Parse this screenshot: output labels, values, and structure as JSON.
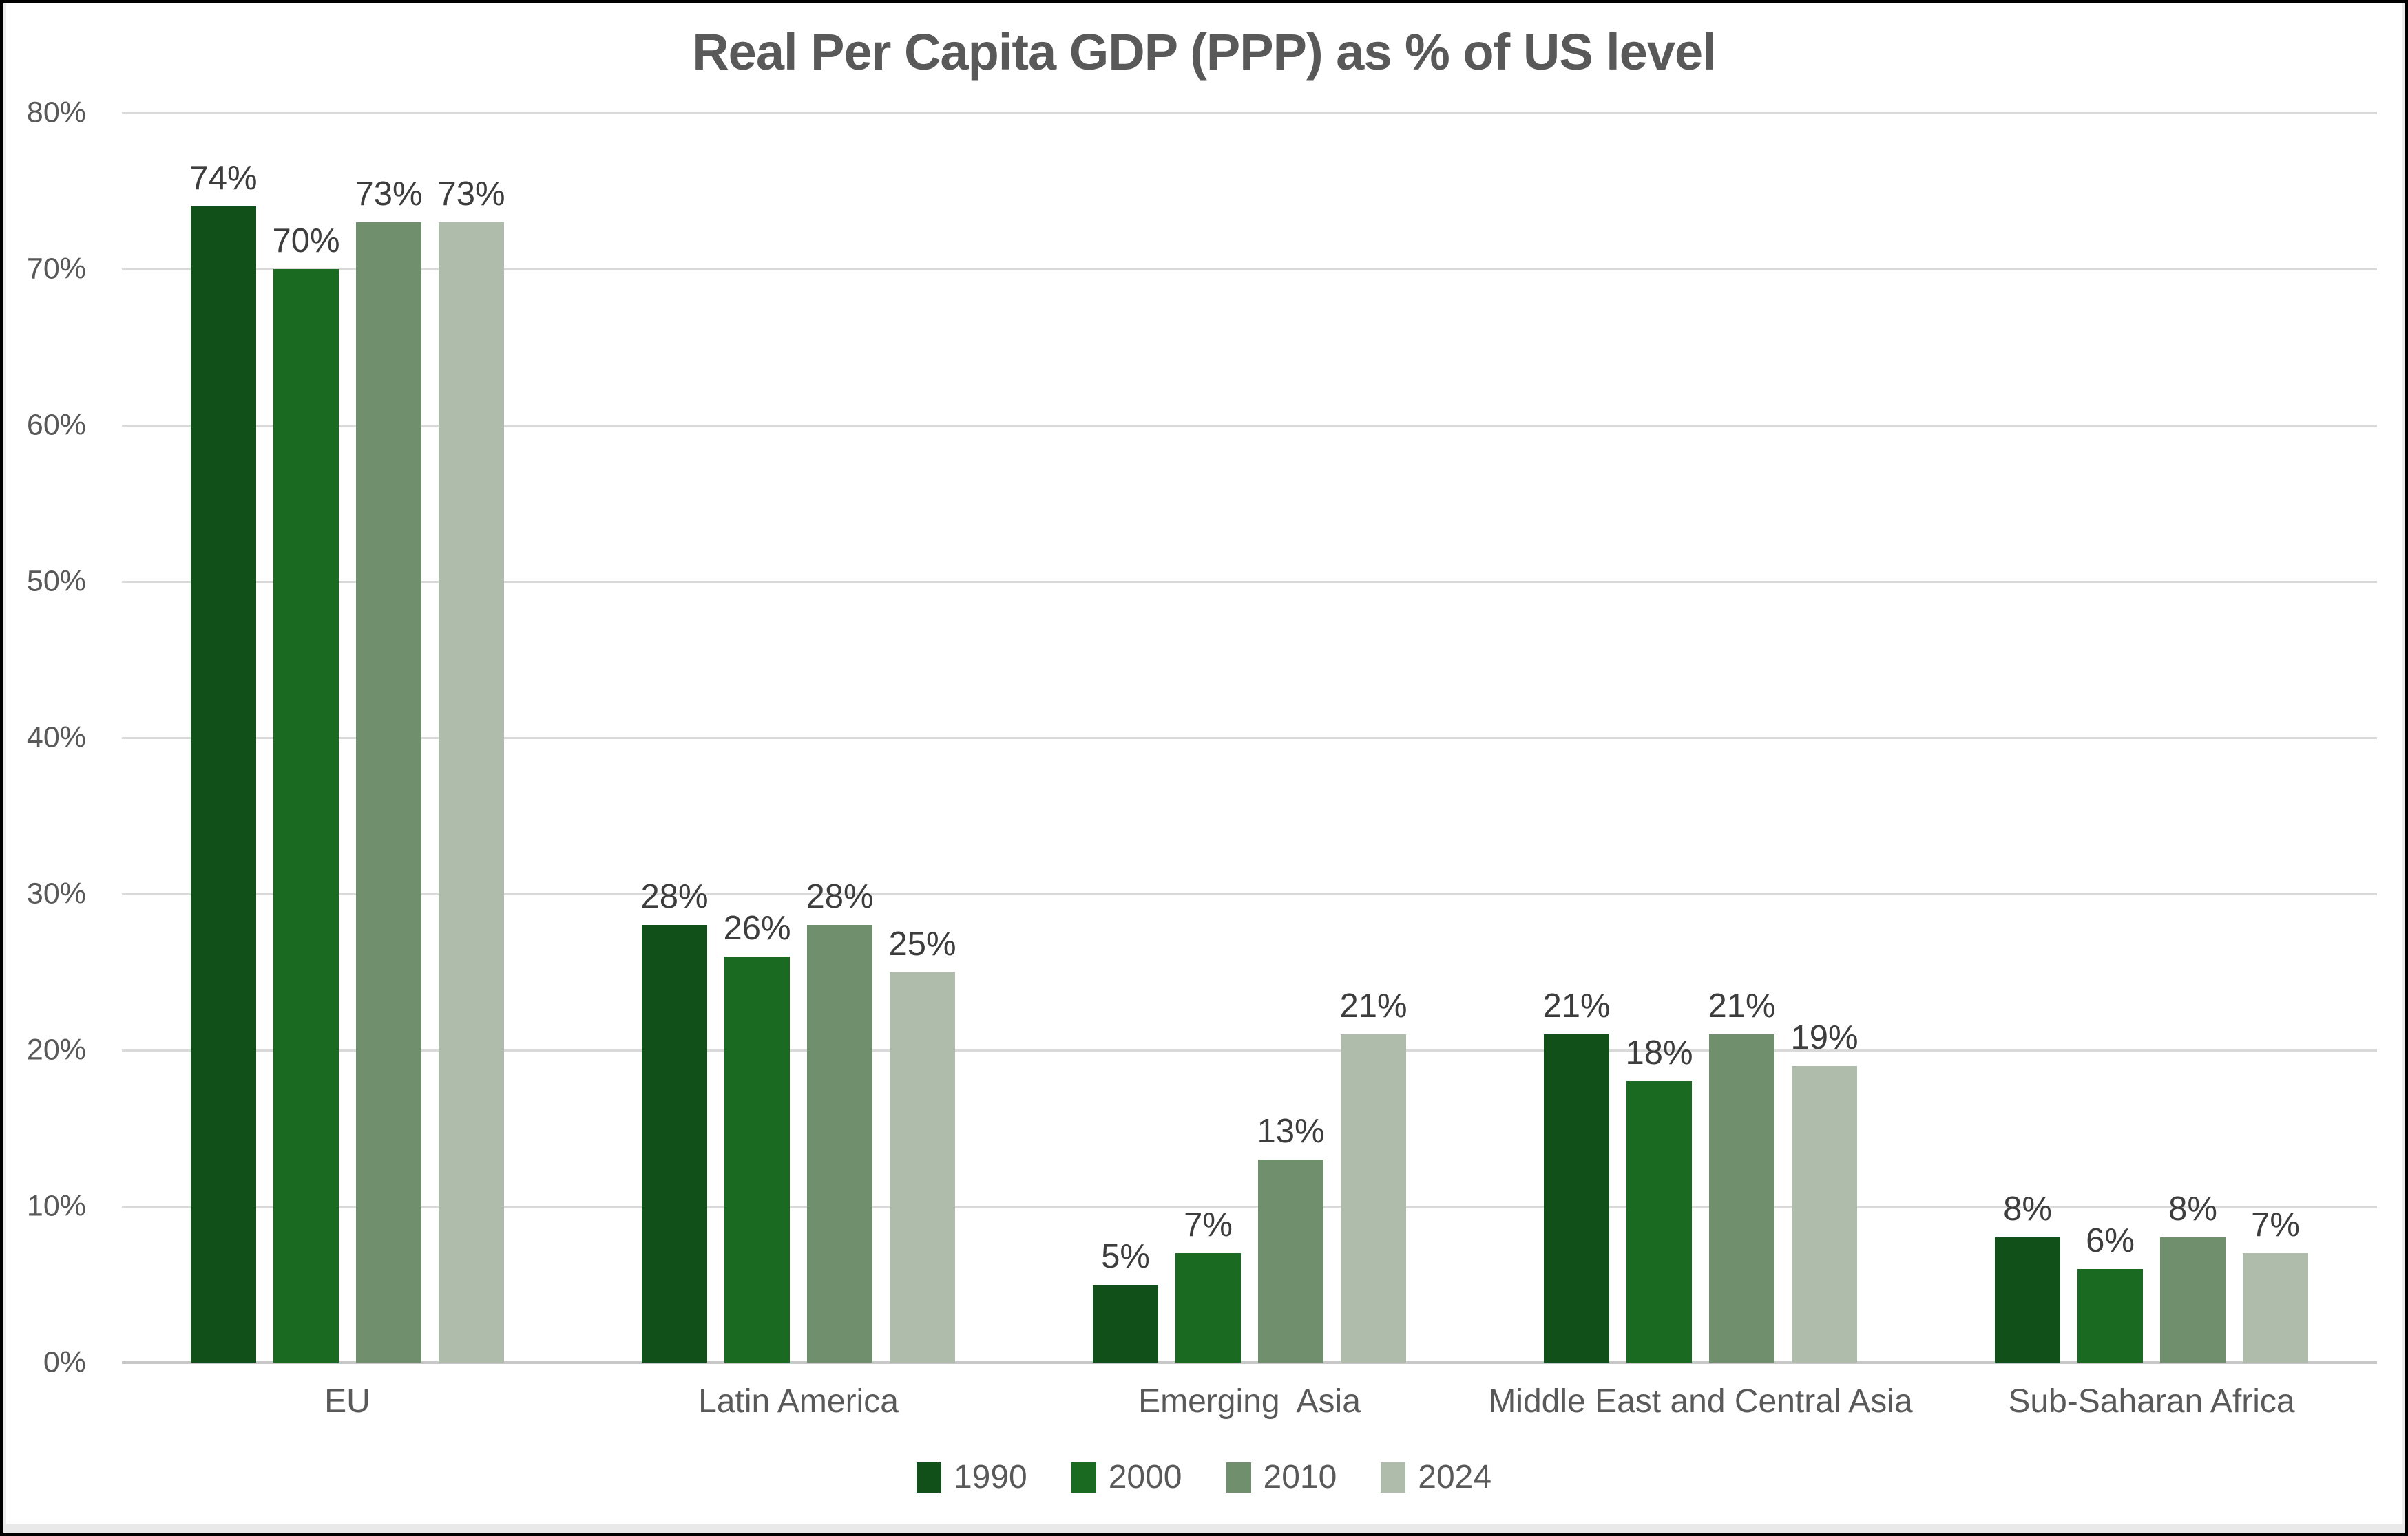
{
  "chart_data": {
    "type": "bar",
    "title": "Real Per Capita GDP (PPP) as % of US level",
    "categories": [
      "EU",
      "Latin America",
      "Emerging  Asia",
      "Middle East and Central Asia",
      "Sub-Saharan Africa"
    ],
    "series": [
      {
        "name": "1990",
        "color": "#115018",
        "values": [
          74,
          28,
          5,
          21,
          8
        ]
      },
      {
        "name": "2000",
        "color": "#1a6a22",
        "values": [
          70,
          26,
          7,
          18,
          6
        ]
      },
      {
        "name": "2010",
        "color": "#6f8f6d",
        "values": [
          73,
          28,
          13,
          21,
          8
        ]
      },
      {
        "name": "2024",
        "color": "#afbcab",
        "values": [
          73,
          25,
          21,
          19,
          7
        ]
      }
    ],
    "value_suffix": "%",
    "ylim": [
      0,
      80
    ],
    "ytick_step": 10,
    "ytick_labels": [
      "0%",
      "10%",
      "20%",
      "30%",
      "40%",
      "50%",
      "60%",
      "70%",
      "80%"
    ],
    "grid": true,
    "legend_position": "bottom",
    "colors": {
      "title_text": "#595959",
      "axis_text": "#595959",
      "value_label_text": "#3d3d3d",
      "gridline": "#d9d9d9",
      "background": "#ffffff",
      "border": "#000000"
    }
  }
}
